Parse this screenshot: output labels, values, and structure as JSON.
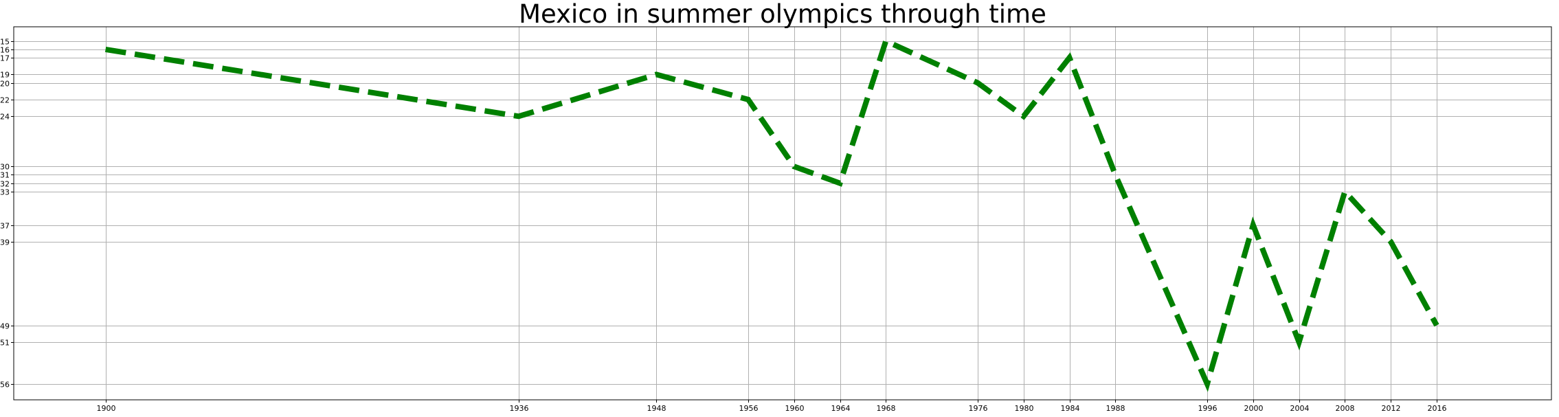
{
  "chart_data": {
    "type": "line",
    "title": "Mexico in summer olympics through time",
    "xlabel": "",
    "ylabel": "",
    "x_ticks": [
      "1900",
      "1936",
      "1948",
      "1956",
      "1960",
      "1964",
      "1968",
      "1976",
      "1980",
      "1984",
      "1988",
      "1996",
      "2000",
      "2004",
      "2008",
      "2012",
      "2016"
    ],
    "y_ticks": [
      "15",
      "16",
      "17",
      "19",
      "20",
      "22",
      "24",
      "30",
      "31",
      "32",
      "33",
      "37",
      "39",
      "49",
      "51",
      "56"
    ],
    "y_inverted": true,
    "xlim": [
      1892,
      2026
    ],
    "ylim": [
      57.9,
      13.3
    ],
    "grid": true,
    "series": [
      {
        "name": "",
        "color": "#008000",
        "line_style": "dashed",
        "x": [
          1900,
          1936,
          1948,
          1956,
          1960,
          1964,
          1968,
          1976,
          1980,
          1984,
          1988,
          1996,
          2000,
          2004,
          2008,
          2012,
          2016
        ],
        "y": [
          16,
          24,
          19,
          22,
          30,
          32,
          15,
          20,
          24,
          17,
          31,
          56,
          37,
          51,
          33,
          39,
          49
        ]
      }
    ]
  }
}
